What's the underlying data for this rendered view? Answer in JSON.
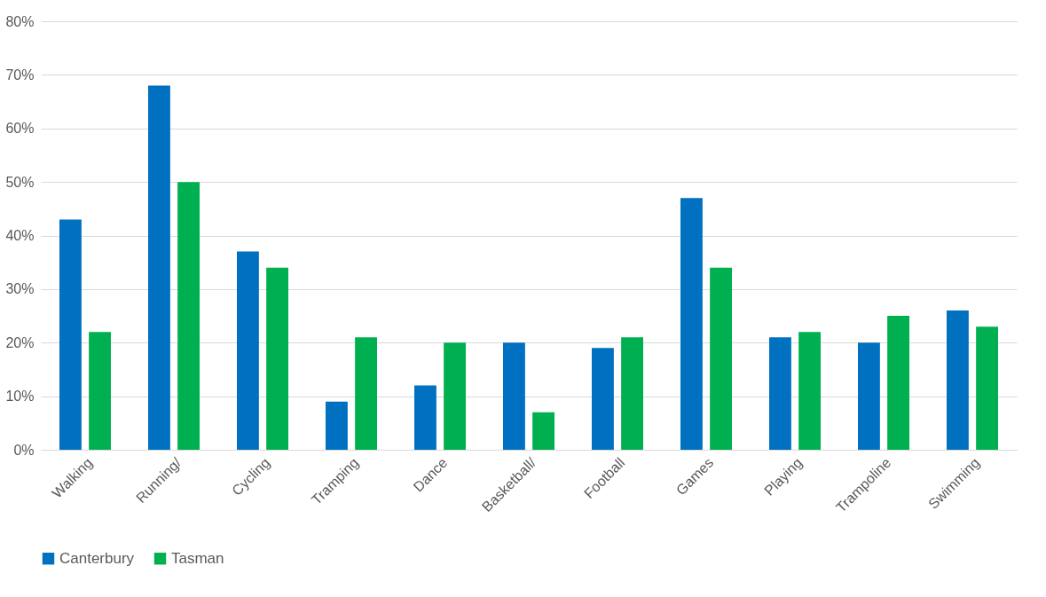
{
  "chart_data": {
    "type": "bar",
    "categories": [
      "Walking",
      "Running/",
      "Cycling",
      "Tramping",
      "Dance",
      "Basketball/",
      "Football",
      "Games",
      "Playing",
      "Trampoline",
      "Swimming"
    ],
    "series": [
      {
        "name": "Canterbury",
        "color": "#0070c0",
        "values": [
          43,
          68,
          37,
          9,
          12,
          20,
          19,
          47,
          21,
          20,
          26
        ]
      },
      {
        "name": "Tasman",
        "color": "#00b050",
        "values": [
          22,
          50,
          34,
          21,
          20,
          7,
          21,
          34,
          22,
          25,
          23
        ]
      }
    ],
    "ylim": [
      0,
      80
    ],
    "yticks": [
      {
        "value": 0,
        "label": "0%"
      },
      {
        "value": 10,
        "label": "10%"
      },
      {
        "value": 20,
        "label": "20%"
      },
      {
        "value": 30,
        "label": "30%"
      },
      {
        "value": 40,
        "label": "40%"
      },
      {
        "value": 50,
        "label": "50%"
      },
      {
        "value": 60,
        "label": "60%"
      },
      {
        "value": 70,
        "label": "70%"
      },
      {
        "value": 80,
        "label": "80%"
      }
    ],
    "grid": "y",
    "legend": "bottom"
  }
}
